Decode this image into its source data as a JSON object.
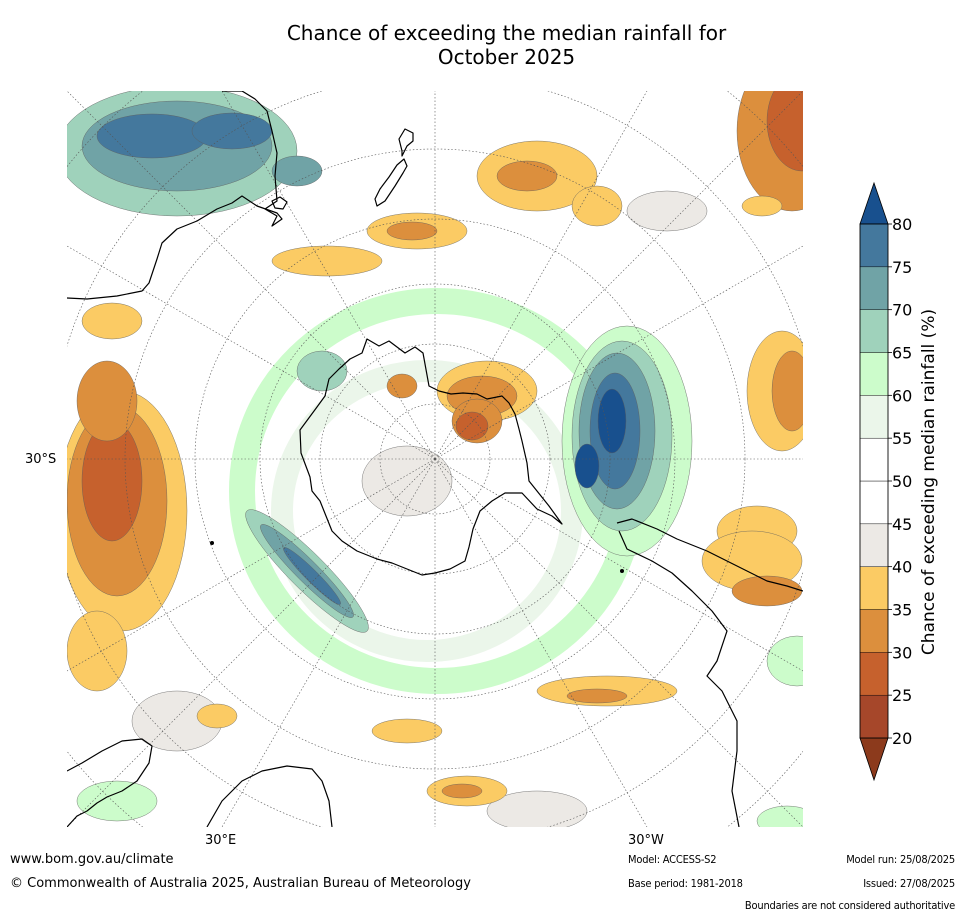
{
  "title": {
    "line1": "Chance of exceeding the median rainfall for",
    "line2": "October 2025"
  },
  "map": {
    "projection": "south-polar-stereographic",
    "lat_label": "30°S",
    "lon_labels": {
      "east": "30°E",
      "west": "30°W"
    }
  },
  "colorbar": {
    "label": "Chance of exceeding median rainfall (%)",
    "ticks": [
      "20",
      "25",
      "30",
      "35",
      "40",
      "45",
      "50",
      "55",
      "60",
      "65",
      "70",
      "75",
      "80"
    ],
    "colors": [
      "#a6472a",
      "#c6612d",
      "#dc8f3d",
      "#fbcb64",
      "#ece9e5",
      "#ffffff",
      "#ffffff",
      "#ebf6ea",
      "#ccfccb",
      "#9fd2bb",
      "#70a3a6",
      "#44789d"
    ],
    "under_color": "#8c3a1c",
    "over_color": "#18508e"
  },
  "footer": {
    "website": "www.bom.gov.au/climate",
    "copyright": "© Commonwealth of Australia 2025, Australian Bureau of Meteorology",
    "model": "Model: ACCESS-S2",
    "base_period": "Base period: 1981-2018",
    "model_run": "Model run: 25/08/2025",
    "issued": "Issued: 27/08/2025",
    "disclaimer": "Boundaries are not considered authoritative"
  }
}
